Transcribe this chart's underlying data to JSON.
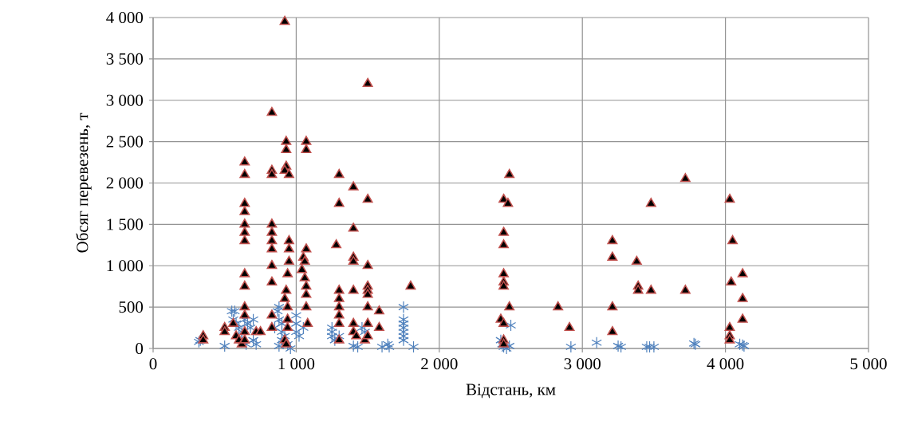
{
  "chart_data": {
    "type": "scatter",
    "xlabel": "Відстань, км",
    "ylabel": "Обсяг перевезень, т",
    "xlim": [
      0,
      5000
    ],
    "ylim": [
      0,
      4000
    ],
    "xticks": [
      0,
      {
        "value": 1000,
        "label": "1 000"
      },
      {
        "value": 2000,
        "label": "2 000"
      },
      {
        "value": 3000,
        "label": "3 000"
      },
      {
        "value": 4000,
        "label": "4 000"
      },
      {
        "value": 5000,
        "label": "5 000"
      }
    ],
    "yticks": [
      0,
      500,
      {
        "value": 1000,
        "label": "1 000"
      },
      {
        "value": 1500,
        "label": "1 500"
      },
      {
        "value": 2000,
        "label": "2 000"
      },
      {
        "value": 2500,
        "label": "2 500"
      },
      {
        "value": 3000,
        "label": "3 000"
      },
      {
        "value": 3500,
        "label": "3 500"
      },
      {
        "value": 4000,
        "label": "4 000"
      }
    ],
    "grid": true,
    "series": [
      {
        "color": "#4f81bd",
        "marker": "cross",
        "x": [
          320,
          330,
          500,
          550,
          570,
          560,
          580,
          600,
          620,
          640,
          660,
          680,
          700,
          700,
          720,
          620,
          650,
          850,
          870,
          880,
          880,
          900,
          900,
          920,
          900,
          940,
          960,
          1000,
          1000,
          1000,
          1020,
          1050,
          880,
          1250,
          1250,
          1250,
          1270,
          1300,
          1400,
          1430,
          1460,
          1480,
          1600,
          1640,
          1650,
          1750,
          1750,
          1750,
          1750,
          1750,
          1750,
          1750,
          1820,
          2430,
          2440,
          2450,
          2470,
          2500,
          2490,
          2920,
          3100,
          3250,
          3270,
          3450,
          3470,
          3500,
          3790,
          3780,
          4100,
          4120,
          4130
        ],
        "values": [
          80,
          100,
          30,
          450,
          450,
          350,
          300,
          250,
          200,
          350,
          300,
          250,
          350,
          100,
          50,
          100,
          50,
          250,
          450,
          500,
          350,
          300,
          200,
          150,
          100,
          50,
          0,
          400,
          300,
          200,
          150,
          250,
          30,
          250,
          200,
          150,
          100,
          150,
          30,
          20,
          250,
          200,
          20,
          50,
          20,
          500,
          350,
          300,
          250,
          200,
          150,
          100,
          20,
          100,
          50,
          20,
          0,
          280,
          30,
          20,
          70,
          30,
          20,
          20,
          20,
          20,
          50,
          60,
          50,
          40,
          30
        ]
      },
      {
        "color": "#c0504d",
        "marker": "triangle",
        "x": [
          350,
          350,
          500,
          500,
          560,
          580,
          600,
          620,
          640,
          640,
          640,
          640,
          640,
          640,
          640,
          640,
          640,
          640,
          640,
          640,
          640,
          720,
          750,
          830,
          830,
          830,
          830,
          830,
          830,
          830,
          830,
          830,
          830,
          830,
          920,
          930,
          930,
          930,
          920,
          950,
          950,
          950,
          950,
          940,
          930,
          920,
          940,
          940,
          940,
          920,
          930,
          1050,
          1070,
          1070,
          1070,
          1060,
          1040,
          1060,
          1070,
          1070,
          1070,
          1080,
          1300,
          1300,
          1280,
          1300,
          1300,
          1300,
          1300,
          1300,
          1300,
          1400,
          1400,
          1400,
          1400,
          1400,
          1400,
          1400,
          1420,
          1500,
          1500,
          1500,
          1500,
          1500,
          1500,
          1500,
          1500,
          1480,
          1500,
          1580,
          1580,
          1800,
          2430,
          2450,
          2450,
          2450,
          2450,
          2450,
          2450,
          2450,
          2450,
          2450,
          2480,
          2490,
          2490,
          2830,
          2910,
          3210,
          3210,
          3210,
          3210,
          3380,
          3390,
          3390,
          3480,
          3480,
          3720,
          3720,
          4030,
          4050,
          4040,
          4030,
          4030,
          4030,
          4120,
          4120,
          4120
        ],
        "values": [
          150,
          100,
          250,
          200,
          300,
          150,
          100,
          50,
          2250,
          2100,
          1750,
          1650,
          1500,
          1400,
          1300,
          900,
          750,
          500,
          400,
          200,
          100,
          200,
          200,
          2850,
          2150,
          2100,
          1500,
          1400,
          1300,
          1200,
          1000,
          800,
          400,
          250,
          3950,
          2500,
          2400,
          2200,
          2150,
          2100,
          1300,
          1200,
          1050,
          900,
          700,
          600,
          500,
          350,
          250,
          100,
          50,
          1100,
          2500,
          2400,
          1200,
          1050,
          950,
          850,
          750,
          650,
          500,
          300,
          2100,
          1750,
          1250,
          700,
          600,
          500,
          400,
          300,
          100,
          1950,
          1450,
          1100,
          1050,
          700,
          300,
          200,
          150,
          3200,
          1800,
          1000,
          750,
          700,
          650,
          500,
          300,
          100,
          150,
          450,
          250,
          750,
          350,
          1800,
          1400,
          1250,
          900,
          800,
          750,
          300,
          100,
          50,
          1750,
          2100,
          500,
          500,
          250,
          1300,
          1100,
          500,
          200,
          1050,
          750,
          700,
          1750,
          700,
          2050,
          700,
          1800,
          1300,
          800,
          250,
          150,
          100,
          900,
          600,
          350
        ]
      }
    ]
  }
}
